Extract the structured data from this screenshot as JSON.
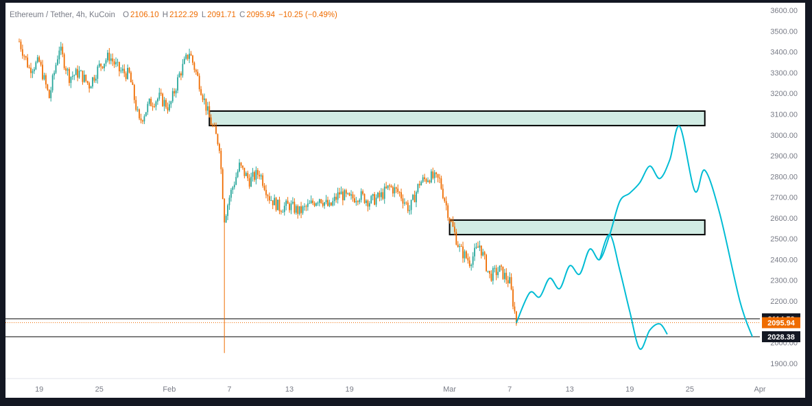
{
  "legend": {
    "symbol": "Ethereum / Tether, 4h, KuCoin",
    "o_label": "O",
    "o": "2106.10",
    "h_label": "H",
    "h": "2122.29",
    "l_label": "L",
    "l": "2091.71",
    "c_label": "C",
    "c": "2095.94",
    "change": "−10.25 (−0.49%)"
  },
  "colors": {
    "up": "#26a69a",
    "down": "#ef6c00",
    "projection": "#00bcd4",
    "zone_fill": "#d1ece4",
    "zone_border": "#000000",
    "axis_text": "#787b86",
    "frame": "#131722"
  },
  "chart_data": {
    "type": "candlestick",
    "timeframe": "4h",
    "ylim": [
      1850,
      3600
    ],
    "y_ticks": [
      "1900.00",
      "2000.00",
      "2100.00",
      "2200.00",
      "2300.00",
      "2400.00",
      "2500.00",
      "2600.00",
      "2700.00",
      "2800.00",
      "2900.00",
      "3000.00",
      "3100.00",
      "3200.00",
      "3300.00",
      "3400.00",
      "3500.00",
      "3600.00"
    ],
    "y_tick_values": [
      1900,
      2000,
      2100,
      2200,
      2300,
      2400,
      2500,
      2600,
      2700,
      2800,
      2900,
      3000,
      3100,
      3200,
      3300,
      3400,
      3500,
      3600
    ],
    "x_ticks": [
      "19",
      "25",
      "Feb",
      "7",
      "13",
      "19",
      "Mar",
      "7",
      "13",
      "19",
      "25",
      "Apr"
    ],
    "x_tick_dates": [
      "2022-01-19",
      "2022-01-25",
      "2022-02-01",
      "2022-02-07",
      "2022-02-13",
      "2022-02-19",
      "2022-03-01",
      "2022-03-07",
      "2022-03-13",
      "2022-03-19",
      "2022-03-25",
      "2022-04-01"
    ],
    "price_anchors": [
      {
        "t": "2022-01-17T00",
        "p": 3450
      },
      {
        "t": "2022-01-18T00",
        "p": 3320
      },
      {
        "t": "2022-01-19T00",
        "p": 3350
      },
      {
        "t": "2022-01-20T00",
        "p": 3180
      },
      {
        "t": "2022-01-21T00",
        "p": 3420
      },
      {
        "t": "2022-01-22T00",
        "p": 3280
      },
      {
        "t": "2022-01-23T00",
        "p": 3300
      },
      {
        "t": "2022-01-24T00",
        "p": 3240
      },
      {
        "t": "2022-01-25T00",
        "p": 3330
      },
      {
        "t": "2022-01-26T00",
        "p": 3380
      },
      {
        "t": "2022-01-27T00",
        "p": 3310
      },
      {
        "t": "2022-01-28T00",
        "p": 3290
      },
      {
        "t": "2022-01-29T00",
        "p": 3060
      },
      {
        "t": "2022-01-30T00",
        "p": 3150
      },
      {
        "t": "2022-01-31T00",
        "p": 3180
      },
      {
        "t": "2022-02-01T00",
        "p": 3130
      },
      {
        "t": "2022-02-02T00",
        "p": 3290
      },
      {
        "t": "2022-02-03T00",
        "p": 3400
      },
      {
        "t": "2022-02-04T00",
        "p": 3250
      },
      {
        "t": "2022-02-05T00",
        "p": 3080
      },
      {
        "t": "2022-02-06T00",
        "p": 2950
      },
      {
        "t": "2022-02-06T12",
        "p": 2600
      },
      {
        "t": "2022-02-07T00",
        "p": 2700
      },
      {
        "t": "2022-02-08T00",
        "p": 2850
      },
      {
        "t": "2022-02-09T00",
        "p": 2780
      },
      {
        "t": "2022-02-10T00",
        "p": 2820
      },
      {
        "t": "2022-02-11T00",
        "p": 2700
      },
      {
        "t": "2022-02-12T00",
        "p": 2650
      },
      {
        "t": "2022-02-13T00",
        "p": 2660
      },
      {
        "t": "2022-02-14T00",
        "p": 2630
      },
      {
        "t": "2022-02-15T00",
        "p": 2660
      },
      {
        "t": "2022-02-16T00",
        "p": 2700
      },
      {
        "t": "2022-02-17T00",
        "p": 2650
      },
      {
        "t": "2022-02-18T00",
        "p": 2720
      },
      {
        "t": "2022-02-19T00",
        "p": 2690
      },
      {
        "t": "2022-02-20T00",
        "p": 2710
      },
      {
        "t": "2022-02-21T00",
        "p": 2680
      },
      {
        "t": "2022-02-22T00",
        "p": 2700
      },
      {
        "t": "2022-02-23T00",
        "p": 2750
      },
      {
        "t": "2022-02-24T00",
        "p": 2720
      },
      {
        "t": "2022-02-25T00",
        "p": 2640
      },
      {
        "t": "2022-02-26T00",
        "p": 2770
      },
      {
        "t": "2022-02-27T00",
        "p": 2800
      },
      {
        "t": "2022-02-28T00",
        "p": 2780
      },
      {
        "t": "2022-03-01T00",
        "p": 2600
      },
      {
        "t": "2022-03-02T00",
        "p": 2450
      },
      {
        "t": "2022-03-03T00",
        "p": 2390
      },
      {
        "t": "2022-03-04T00",
        "p": 2470
      },
      {
        "t": "2022-03-05T00",
        "p": 2320
      },
      {
        "t": "2022-03-06T00",
        "p": 2350
      },
      {
        "t": "2022-03-07T00",
        "p": 2290
      },
      {
        "t": "2022-03-07T16",
        "p": 2100
      }
    ],
    "spike_low": {
      "t": "2022-02-06T12",
      "p": 1950
    },
    "supply_zones": [
      {
        "t_start": "2022-02-05T00",
        "t_end": "2022-03-26T12",
        "y_low": 3045,
        "y_high": 3115
      },
      {
        "t_start": "2022-03-01T00",
        "t_end": "2022-03-26T12",
        "y_low": 2520,
        "y_high": 2590
      }
    ],
    "horizontal_levels": [
      {
        "value": 2114.58,
        "label": "2114.58",
        "style": "solid"
      },
      {
        "value": 2095.94,
        "label": "2095.94",
        "style": "dotted",
        "color": "#ef6c00"
      },
      {
        "value": 2028.38,
        "label": "2028.38",
        "style": "solid"
      }
    ],
    "projection": [
      {
        "t": "2022-03-07T16",
        "p": 2095
      },
      {
        "t": "2022-03-09T00",
        "p": 2240
      },
      {
        "t": "2022-03-10T00",
        "p": 2220
      },
      {
        "t": "2022-03-11T00",
        "p": 2310
      },
      {
        "t": "2022-03-12T00",
        "p": 2260
      },
      {
        "t": "2022-03-13T00",
        "p": 2370
      },
      {
        "t": "2022-03-14T00",
        "p": 2330
      },
      {
        "t": "2022-03-15T00",
        "p": 2450
      },
      {
        "t": "2022-03-16T00",
        "p": 2400
      },
      {
        "t": "2022-03-17T00",
        "p": 2520
      },
      {
        "t": "2022-03-18T00",
        "p": 2680
      },
      {
        "t": "2022-03-19T00",
        "p": 2720
      },
      {
        "t": "2022-03-20T00",
        "p": 2770
      },
      {
        "t": "2022-03-21T00",
        "p": 2850
      },
      {
        "t": "2022-03-22T00",
        "p": 2790
      },
      {
        "t": "2022-03-23T00",
        "p": 2880
      },
      {
        "t": "2022-03-24T00",
        "p": 3040
      },
      {
        "t": "2022-03-25T12",
        "p": 2730
      },
      {
        "t": "2022-03-26T12",
        "p": 2830
      },
      {
        "t": "2022-03-28T00",
        "p": 2620
      },
      {
        "t": "2022-03-30T00",
        "p": 2200
      },
      {
        "t": "2022-03-31T06",
        "p": 2028
      }
    ],
    "projection_alt": [
      {
        "t": "2022-03-16T00",
        "p": 2400
      },
      {
        "t": "2022-03-17T00",
        "p": 2520
      },
      {
        "t": "2022-03-18T00",
        "p": 2350
      },
      {
        "t": "2022-03-19T00",
        "p": 2150
      },
      {
        "t": "2022-03-20T00",
        "p": 1970
      },
      {
        "t": "2022-03-21T00",
        "p": 2060
      },
      {
        "t": "2022-03-22T00",
        "p": 2090
      },
      {
        "t": "2022-03-22T18",
        "p": 2040
      }
    ]
  }
}
